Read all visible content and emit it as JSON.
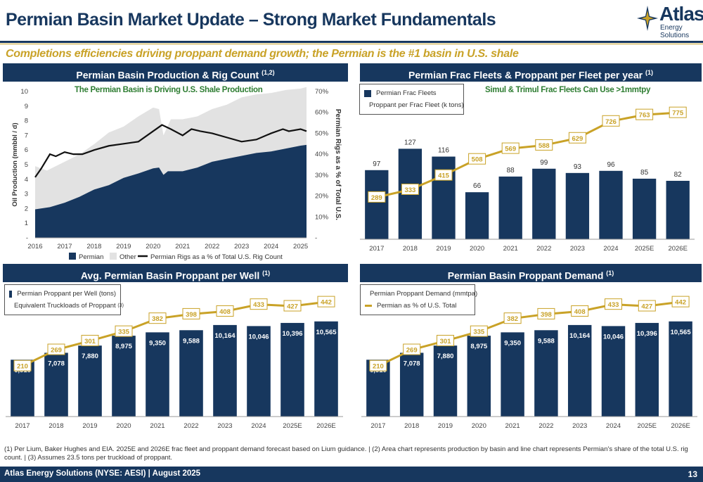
{
  "header": {
    "title": "Permian Basin Market Update – Strong Market Fundamentals",
    "subtitle": "Completions efficiencies driving proppant demand growth; the Permian is the #1 basin in U.S. shale",
    "logo_name": "Atlas",
    "logo_sub": "Energy Solutions"
  },
  "colors": {
    "navy": "#17375e",
    "gold": "#c9a227",
    "grey": "#e2e2e2",
    "green": "#2e7d32"
  },
  "panels": {
    "production": {
      "title": "Permian Basin Production & Rig Count",
      "sup": "(1,2)",
      "note": "The Permian Basin is Driving U.S. Shale Production"
    },
    "fleets": {
      "title": "Permian Frac Fleets & Proppant per Fleet per year",
      "sup": "(1)",
      "note": "Simul & Trimul Frac Fleets Can Use >1mmtpy"
    },
    "per_well": {
      "title": "Avg. Permian Basin Proppant per Well",
      "sup": "(1)"
    },
    "demand": {
      "title": "Permian Basin Proppant Demand",
      "sup": "(1)"
    }
  },
  "chart_data": [
    {
      "type": "area",
      "x_ticks": [
        "2016",
        "2017",
        "2018",
        "2019",
        "2020",
        "2021",
        "2022",
        "2023",
        "2024",
        "2025"
      ],
      "xlim": [
        2016,
        2025.2
      ],
      "ylabel": "Oil Production (mmbbl / d)",
      "ylim": [
        0,
        10
      ],
      "y_ticks": [
        "-",
        "1",
        "2",
        "3",
        "4",
        "5",
        "6",
        "7",
        "8",
        "9",
        "10"
      ],
      "y2label": "Permian Rigs as a % of Total U.S.",
      "y2lim": [
        0,
        70
      ],
      "y2_ticks": [
        "-",
        "10%",
        "20%",
        "30%",
        "40%",
        "50%",
        "60%",
        "70%"
      ],
      "legend": [
        "Permian",
        "Other",
        "Permian Rigs as a % of Total U.S. Rig Count"
      ],
      "series": [
        {
          "name": "Permian",
          "x": [
            2016,
            2016.5,
            2017,
            2017.5,
            2018,
            2018.5,
            2019,
            2019.5,
            2020,
            2020.2,
            2020.35,
            2020.5,
            2021,
            2021.5,
            2022,
            2022.5,
            2023,
            2023.5,
            2024,
            2024.5,
            2025,
            2025.2
          ],
          "values": [
            1.95,
            2.1,
            2.4,
            2.8,
            3.3,
            3.6,
            4.1,
            4.4,
            4.75,
            4.8,
            4.3,
            4.55,
            4.55,
            4.8,
            5.2,
            5.4,
            5.6,
            5.8,
            5.9,
            6.1,
            6.3,
            6.35
          ]
        },
        {
          "name": "Other",
          "x": [
            2016,
            2016.4,
            2016.7,
            2017,
            2017.5,
            2018,
            2018.5,
            2019,
            2019.5,
            2020,
            2020.2,
            2020.35,
            2020.6,
            2021,
            2021.5,
            2022,
            2022.5,
            2023,
            2023.5,
            2024,
            2024.5,
            2025,
            2025.2
          ],
          "values": [
            4.9,
            4.6,
            4.9,
            5.2,
            5.7,
            6.4,
            7.2,
            7.6,
            8.3,
            8.9,
            8.8,
            7.0,
            8.1,
            8.1,
            8.3,
            8.8,
            9.1,
            9.6,
            9.8,
            9.9,
            10.1,
            10.2,
            10.3
          ]
        },
        {
          "name": "Permian Rigs as a % of Total U.S. Rig Count",
          "x": [
            2016,
            2016.2,
            2016.5,
            2016.7,
            2017,
            2017.3,
            2017.6,
            2018,
            2018.5,
            2019,
            2019.5,
            2020,
            2020.3,
            2020.6,
            2021,
            2021.3,
            2021.6,
            2022,
            2022.5,
            2023,
            2023.5,
            2024,
            2024.4,
            2024.6,
            2025,
            2025.2
          ],
          "values": [
            29,
            33,
            40,
            39,
            41,
            40,
            40,
            42,
            44,
            45,
            46,
            51,
            54,
            52,
            49,
            52,
            51,
            50,
            48,
            46,
            47,
            50,
            52,
            51,
            52,
            51
          ]
        }
      ]
    },
    {
      "type": "bar",
      "categories": [
        "2017",
        "2018",
        "2019",
        "2020",
        "2021",
        "2022",
        "2023",
        "2024",
        "2025E",
        "2026E"
      ],
      "legend": [
        "Permian Frac Fleets",
        "Proppant per Frac Fleet (k tons)"
      ],
      "series": [
        {
          "name": "Permian Frac Fleets",
          "values": [
            97,
            127,
            116,
            66,
            88,
            99,
            93,
            96,
            85,
            82
          ]
        },
        {
          "name": "Proppant per Frac Fleet (k tons)",
          "values": [
            289,
            333,
            415,
            508,
            569,
            588,
            629,
            726,
            763,
            775
          ]
        }
      ]
    },
    {
      "type": "bar",
      "categories": [
        "2017",
        "2018",
        "2019",
        "2020",
        "2021",
        "2022",
        "2023",
        "2024",
        "2025E",
        "2026E"
      ],
      "legend": [
        "Permian Proppant per Well (tons)",
        "Equivalent Truckloads of Proppant"
      ],
      "legend_sup": "(3)",
      "series": [
        {
          "name": "Permian Proppant per Well (tons)",
          "values": [
            6310,
            7078,
            7880,
            8975,
            9350,
            9588,
            10164,
            10046,
            10396,
            10565
          ],
          "labels": [
            "6,310",
            "7,078",
            "7,880",
            "8,975",
            "9,350",
            "9,588",
            "10,164",
            "10,046",
            "10,396",
            "10,565"
          ]
        },
        {
          "name": "Equivalent Truckloads of Proppant",
          "values": [
            210,
            269,
            301,
            335,
            382,
            398,
            408,
            433,
            427,
            442
          ]
        }
      ]
    },
    {
      "type": "bar",
      "categories": [
        "2017",
        "2018",
        "2019",
        "2020",
        "2021",
        "2022",
        "2023",
        "2024",
        "2025E",
        "2026E"
      ],
      "legend": [
        "Permian Proppant Demand (mmtpa)",
        "Permian as % of U.S. Total"
      ],
      "series": [
        {
          "name": "Permian Proppant Demand (mmtpa)",
          "values": [
            6310,
            7078,
            7880,
            8975,
            9350,
            9588,
            10164,
            10046,
            10396,
            10565
          ],
          "labels": [
            "6,310",
            "7,078",
            "7,880",
            "8,975",
            "9,350",
            "9,588",
            "10,164",
            "10,046",
            "10,396",
            "10,565"
          ]
        },
        {
          "name": "Permian as % of U.S. Total",
          "values": [
            210,
            269,
            301,
            335,
            382,
            398,
            408,
            433,
            427,
            442
          ]
        }
      ]
    }
  ],
  "footnote": "(1) Per Lium, Baker Hughes and EIA. 2025E and 2026E frac fleet and proppant demand forecast based on Lium guidance. | (2) Area chart represents production by basin and line chart represents Permian's share of the total U.S. rig count. | (3) Assumes 23.5 tons per truckload of proppant.",
  "footer": {
    "company": "Atlas Energy Solutions (NYSE: AESI) | August 2025",
    "page": "13"
  }
}
